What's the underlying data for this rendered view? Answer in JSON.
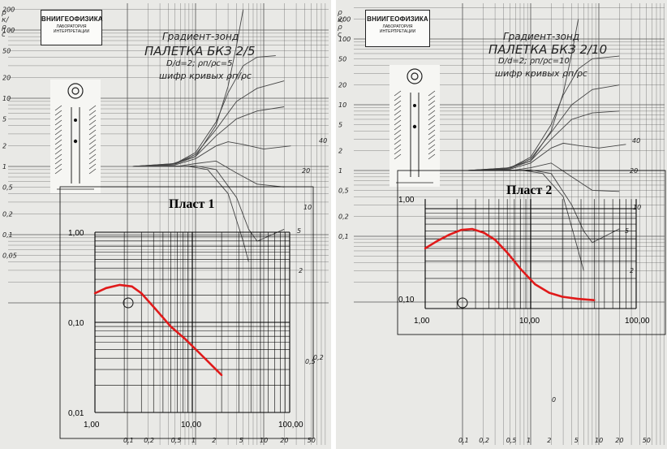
{
  "colors": {
    "paper": "#e9e9e6",
    "grid": "#555555",
    "curve": "#444444",
    "fit": "#e01a1a",
    "overlay": "#000000"
  },
  "panels": [
    {
      "id": "left",
      "stamp": {
        "line1": "ВНИИГЕОФИЗИКА",
        "line2": "ЛАБОРАТОРИЯ",
        "line3": "ИНТЕРПРЕТАЦИИ"
      },
      "title": {
        "line1": "Градиент-зонд",
        "line2": "ПАЛЕТКА БКЗ 2/5",
        "line3": "D/d=2; ρп/ρс=5",
        "line4": "шифр кривых ρп/ρс"
      },
      "plast_label": "Пласт 1",
      "inner_y_labels": [
        "1,00",
        "0,10",
        "0,01"
      ],
      "inner_x_labels": [
        "1,00",
        "10,00",
        "100,00"
      ],
      "outer_y_labels": [
        "200",
        "100",
        "50",
        "20",
        "10",
        "5",
        "2",
        "1",
        "0,5",
        "0,2",
        "0,1",
        "0,05"
      ],
      "outer_x_labels": [
        "0,1",
        "0,2",
        "0,5",
        "1",
        "2",
        "5",
        "10",
        "20",
        "50"
      ],
      "curve_labels": [
        "40",
        "20",
        "10",
        "5",
        "2",
        "0,5",
        "0,2"
      ],
      "ylabel": "ρк/ρс"
    },
    {
      "id": "right",
      "stamp": {
        "line1": "ВНИИГЕОФИЗИКА",
        "line2": "ЛАБОРАТОРИЯ",
        "line3": "ИНТЕРПРЕТАЦИИ"
      },
      "title": {
        "line1": "Градиент-зонд",
        "line2": "ПАЛЕТКА БКЗ 2/10",
        "line3": "D/d=2; ρп/ρс=10",
        "line4": "шифр кривых ρп/ρс"
      },
      "plast_label": "Пласт 2",
      "inner_y_labels": [
        "1,00",
        "0,10"
      ],
      "inner_x_labels": [
        "1,00",
        "10,00",
        "100,00"
      ],
      "outer_y_labels": [
        "200",
        "100",
        "50",
        "20",
        "10",
        "5",
        "2",
        "1",
        "0,5",
        "0,2",
        "0,1"
      ],
      "outer_x_labels": [
        "0,1",
        "0,2",
        "0,5",
        "1",
        "2",
        "5",
        "10",
        "20",
        "50"
      ],
      "curve_labels": [
        "40",
        "20",
        "10",
        "5",
        "2",
        "0"
      ],
      "ylabel": "ρк/ρс"
    }
  ],
  "chart_data": [
    {
      "type": "line",
      "title": "Пласт 1",
      "xscale": "log",
      "yscale": "log",
      "xlim": [
        1,
        100
      ],
      "ylim": [
        0.01,
        1
      ],
      "x_ticks": [
        "1,00",
        "10,00",
        "100,00"
      ],
      "y_ticks": [
        "1,00",
        "0,10",
        "0,01"
      ],
      "series": [
        {
          "x": [
            1.0,
            1.3,
            1.8,
            2.4,
            3.0,
            4.2,
            6.0,
            8.5,
            12.0,
            16.0,
            20.0
          ],
          "y": [
            0.21,
            0.24,
            0.26,
            0.25,
            0.21,
            0.14,
            0.09,
            0.065,
            0.045,
            0.033,
            0.026
          ]
        }
      ]
    },
    {
      "type": "line",
      "title": "Пласт 2",
      "xscale": "log",
      "yscale": "log",
      "xlim": [
        1,
        100
      ],
      "ylim": [
        0.08,
        1
      ],
      "x_ticks": [
        "1,00",
        "10,00",
        "100,00"
      ],
      "y_ticks": [
        "1,00",
        "0,10"
      ],
      "series": [
        {
          "x": [
            1.0,
            1.3,
            1.7,
            2.2,
            2.8,
            3.6,
            4.6,
            6.0,
            8.0,
            11.0,
            15.0,
            20.0,
            28.0,
            40.0
          ],
          "y": [
            0.32,
            0.38,
            0.44,
            0.49,
            0.5,
            0.46,
            0.39,
            0.29,
            0.2,
            0.14,
            0.115,
            0.105,
            0.1,
            0.097
          ]
        }
      ]
    }
  ]
}
